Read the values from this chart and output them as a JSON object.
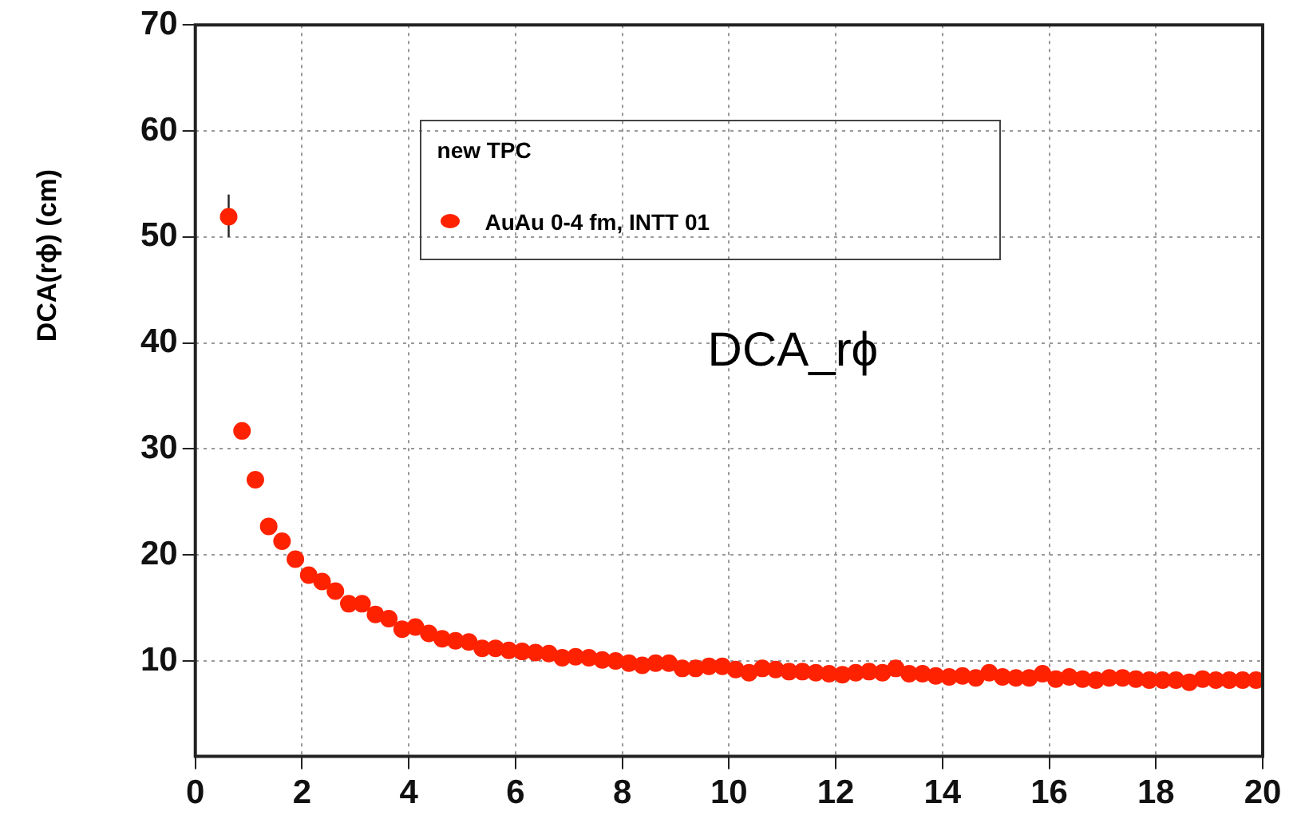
{
  "chart_data": {
    "type": "scatter",
    "ylabel": "DCA(rϕ) (cm)",
    "legend_title": "new TPC",
    "annotations": [
      "DCA_rϕ"
    ],
    "xlim": [
      0,
      20
    ],
    "xticks": [
      0,
      2,
      4,
      6,
      8,
      10,
      12,
      14,
      16,
      18,
      20
    ],
    "ylim": [
      1,
      70
    ],
    "yticks": [
      10,
      20,
      30,
      40,
      50,
      60,
      70
    ],
    "grid": true,
    "legend": "top",
    "marker": "circle",
    "series": [
      {
        "name": "AuAu 0-4 fm, INTT 01",
        "color": "#ff2200",
        "x": [
          0.625,
          0.875,
          1.125,
          1.375,
          1.625,
          1.875,
          2.125,
          2.375,
          2.625,
          2.875,
          3.125,
          3.375,
          3.625,
          3.875,
          4.125,
          4.375,
          4.625,
          4.875,
          5.125,
          5.375,
          5.625,
          5.875,
          6.125,
          6.375,
          6.625,
          6.875,
          7.125,
          7.375,
          7.625,
          7.875,
          8.125,
          8.375,
          8.625,
          8.875,
          9.125,
          9.375,
          9.625,
          9.875,
          10.125,
          10.375,
          10.625,
          10.875,
          11.125,
          11.375,
          11.625,
          11.875,
          12.125,
          12.375,
          12.625,
          12.875,
          13.125,
          13.375,
          13.625,
          13.875,
          14.125,
          14.375,
          14.625,
          14.875,
          15.125,
          15.375,
          15.625,
          15.875,
          16.125,
          16.375,
          16.625,
          16.875,
          17.125,
          17.375,
          17.625,
          17.875,
          18.125,
          18.375,
          18.625,
          18.875,
          19.125,
          19.375,
          19.625,
          19.875
        ],
        "values": [
          51.9,
          31.7,
          27.1,
          22.7,
          21.3,
          19.6,
          18.1,
          17.5,
          16.6,
          15.4,
          15.4,
          14.4,
          14.0,
          13.0,
          13.2,
          12.6,
          12.1,
          11.9,
          11.8,
          11.2,
          11.2,
          11.0,
          10.9,
          10.8,
          10.7,
          10.3,
          10.4,
          10.3,
          10.1,
          10.0,
          9.8,
          9.6,
          9.8,
          9.8,
          9.3,
          9.3,
          9.5,
          9.5,
          9.2,
          8.9,
          9.3,
          9.2,
          9.0,
          9.0,
          8.9,
          8.8,
          8.7,
          8.9,
          9.0,
          8.9,
          9.3,
          8.8,
          8.8,
          8.6,
          8.5,
          8.6,
          8.4,
          8.9,
          8.5,
          8.4,
          8.4,
          8.8,
          8.3,
          8.5,
          8.3,
          8.2,
          8.4,
          8.4,
          8.3,
          8.2,
          8.2,
          8.2,
          8.0,
          8.3,
          8.2,
          8.2,
          8.2,
          8.2
        ],
        "errors": [
          [
            50,
            54
          ],
          null,
          null,
          null,
          null,
          null,
          null,
          null,
          null,
          null,
          null,
          null,
          null,
          null,
          null,
          null,
          null,
          null,
          null,
          null,
          null,
          null,
          null,
          null,
          null,
          null,
          null,
          null,
          null,
          null,
          null,
          null,
          null,
          null,
          null,
          null,
          null,
          null,
          null,
          null,
          null,
          null,
          null,
          null,
          null,
          null,
          null,
          null,
          null,
          null,
          null,
          null,
          null,
          null,
          null,
          null,
          null,
          null,
          null,
          null,
          null,
          null,
          null,
          null,
          null,
          null,
          null,
          null,
          null,
          null,
          null,
          null,
          null,
          null,
          null,
          null,
          null,
          null
        ]
      }
    ]
  }
}
